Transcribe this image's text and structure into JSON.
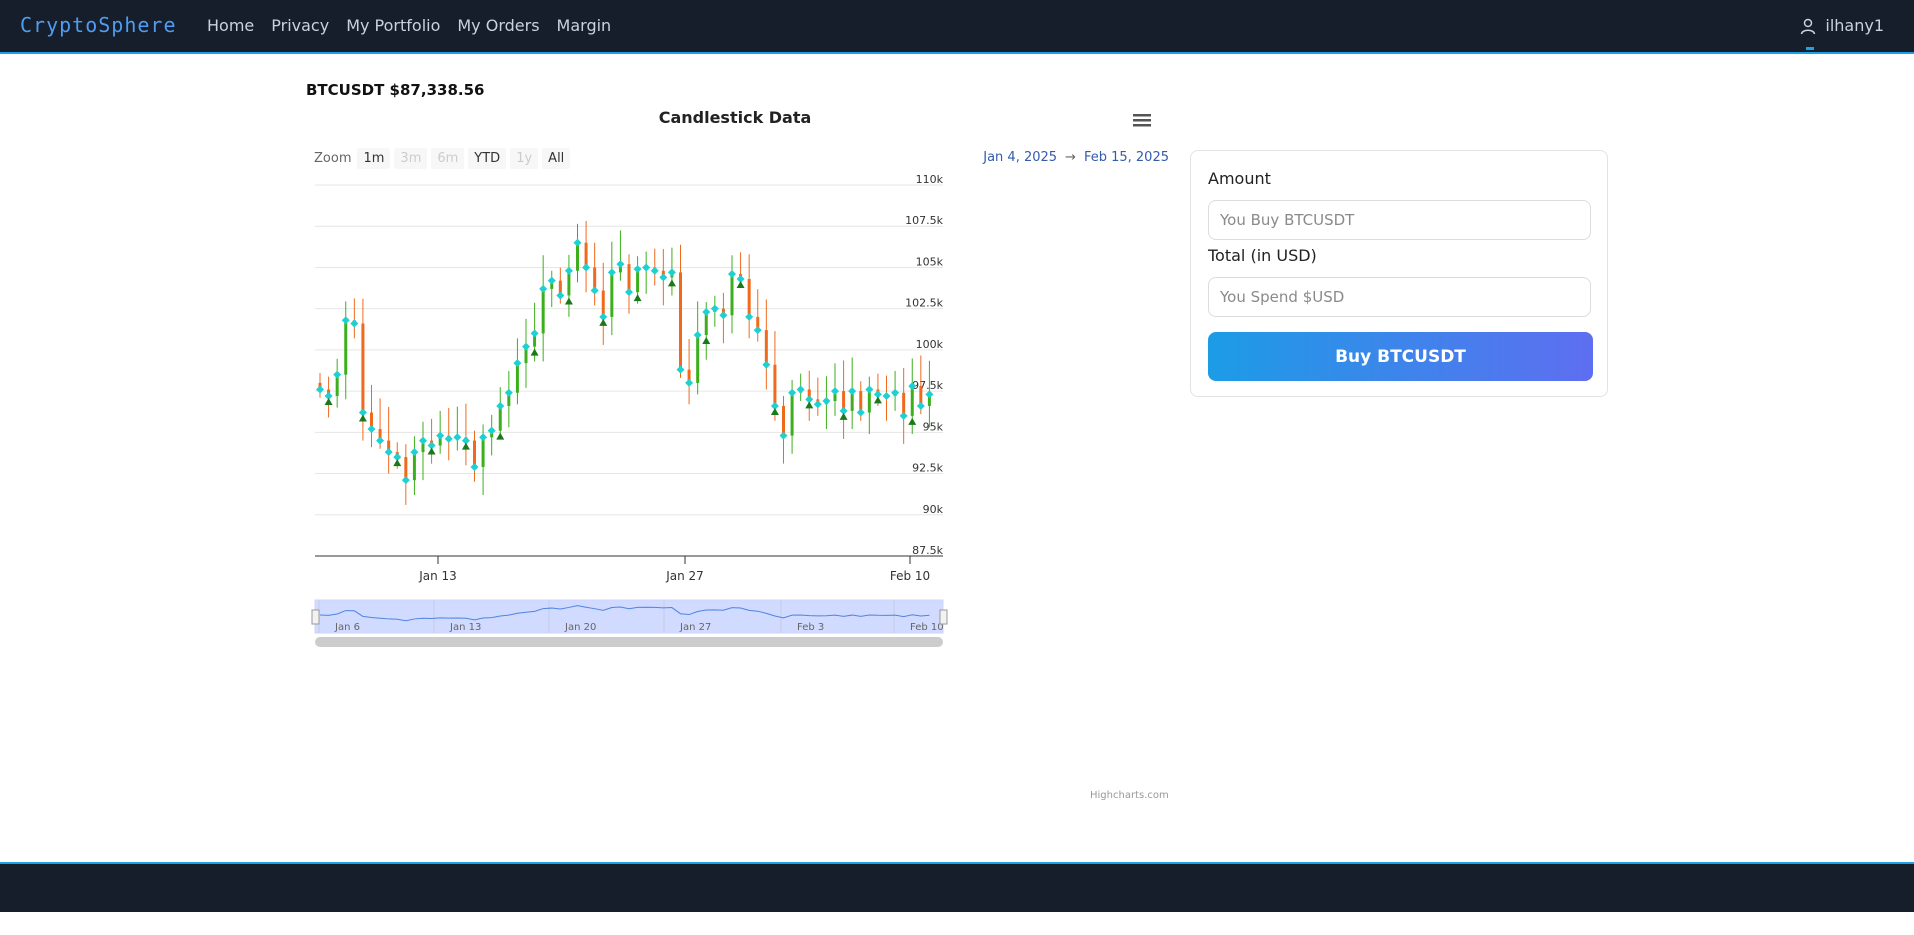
{
  "nav": {
    "brand": "CryptoSphere",
    "links": [
      "Home",
      "Privacy",
      "My Portfolio",
      "My Orders",
      "Margin"
    ],
    "user": "ilhany1"
  },
  "ticker": {
    "pair_price": "BTCUSDT $87,338.56"
  },
  "chart": {
    "zoom_label": "Zoom",
    "zoom_buttons": [
      "1m",
      "3m",
      "6m",
      "YTD",
      "1y",
      "All"
    ],
    "range_from": "Jan 4, 2025",
    "range_arrow": "→",
    "range_to": "Feb 15, 2025",
    "credit": "Highcharts.com",
    "navigator_labels": [
      "Jan 6",
      "Jan 13",
      "Jan 20",
      "Jan 27",
      "Feb 3",
      "Feb 10"
    ]
  },
  "chart_data": {
    "type": "candlestick",
    "title": "Candlestick Data",
    "x_ticks": [
      "Jan 13",
      "Jan 27",
      "Feb 10"
    ],
    "y_ticks": [
      "87.5k",
      "90k",
      "92.5k",
      "95k",
      "97.5k",
      "100k",
      "102.5k",
      "105k",
      "107.5k",
      "110k"
    ],
    "ylim": [
      87500,
      110000
    ],
    "grid": true,
    "colors": {
      "up": "#3cb01c",
      "down": "#f06a1c",
      "marker": "#1fd0d0",
      "triangle": "#1a7a1a"
    },
    "close_series": [
      97600,
      97200,
      98500,
      101800,
      101600,
      96200,
      95200,
      94500,
      93800,
      93500,
      92100,
      93800,
      94500,
      94200,
      94800,
      94600,
      94700,
      94500,
      92900,
      94700,
      95100,
      96600,
      97400,
      99200,
      100200,
      101000,
      103700,
      104200,
      103300,
      104800,
      106500,
      105000,
      103600,
      102000,
      104700,
      105200,
      103500,
      104900,
      105000,
      104800,
      104400,
      104700,
      98800,
      98000,
      100900,
      102300,
      102500,
      102100,
      104600,
      104300,
      102000,
      101200,
      99100,
      96600,
      94800,
      97400,
      97600,
      97000,
      96700,
      96900,
      97500,
      96300,
      97500,
      96200,
      97600,
      97300,
      97200,
      97400,
      96000,
      97800,
      96600,
      97300
    ],
    "markers": [
      "diamond",
      "triangle"
    ]
  },
  "order": {
    "amount_label": "Amount",
    "amount_placeholder": "You Buy BTCUSDT",
    "total_label": "Total (in USD)",
    "total_placeholder": "You Spend $USD",
    "buy_label": "Buy BTCUSDT"
  }
}
